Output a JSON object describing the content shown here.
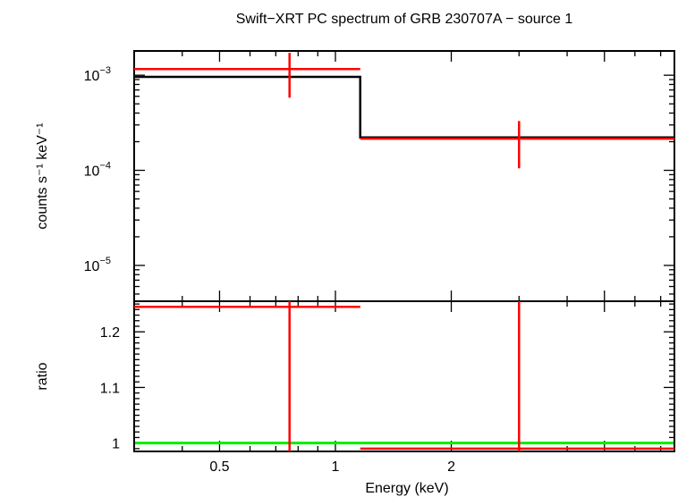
{
  "title": "Swift−XRT PC spectrum of GRB 230707A − source 1",
  "colors": {
    "data": "#ff0000",
    "model": "#000000",
    "unity": "#00ee00",
    "axes": "#000000"
  },
  "chart_data": [
    {
      "type": "scatter",
      "panel": "spectrum",
      "ylabel": "counts s⁻¹ keV⁻¹",
      "x_scale": "log",
      "y_scale": "log",
      "xlim": [
        0.3,
        7.6
      ],
      "ylim": [
        4.2e-06,
        0.0018
      ],
      "y_tick_labels": [
        {
          "value": 0.001,
          "base": "10",
          "exp": "−3"
        },
        {
          "value": 0.0001,
          "base": "10",
          "exp": "−4"
        },
        {
          "value": 1e-05,
          "base": "10",
          "exp": "−5"
        }
      ],
      "series": [
        {
          "kind": "data",
          "color": "#ff0000",
          "points": [
            {
              "x": 0.76,
              "x_low": 0.3,
              "x_high": 1.16,
              "y": 0.00116,
              "y_low": 0.00058,
              "y_high": 0.00172
            },
            {
              "x": 3.0,
              "x_low": 1.16,
              "x_high": 7.6,
              "y": 0.000215,
              "y_low": 0.000105,
              "y_high": 0.00033
            }
          ]
        },
        {
          "kind": "model",
          "color": "#000000",
          "steps": [
            {
              "x_low": 0.3,
              "x_high": 1.16,
              "y": 0.00096
            },
            {
              "x_low": 1.16,
              "x_high": 7.6,
              "y": 0.000222
            }
          ]
        }
      ]
    },
    {
      "type": "scatter",
      "panel": "ratio",
      "ylabel": "ratio",
      "xlabel": "Energy (keV)",
      "x_scale": "log",
      "y_scale": "linear",
      "xlim": [
        0.3,
        7.6
      ],
      "ylim": [
        0.985,
        1.255
      ],
      "x_tick_labels": [
        {
          "value": 0.5,
          "label": "0.5"
        },
        {
          "value": 1,
          "label": "1"
        },
        {
          "value": 2,
          "label": "2"
        }
      ],
      "y_tick_labels": [
        {
          "value": 1.0,
          "label": "1"
        },
        {
          "value": 1.1,
          "label": "1.1"
        },
        {
          "value": 1.2,
          "label": "1.2"
        }
      ],
      "reference_line": {
        "y": 1.0,
        "color": "#00ee00"
      },
      "series": [
        {
          "kind": "data",
          "color": "#ff0000",
          "points": [
            {
              "x": 0.76,
              "x_low": 0.3,
              "x_high": 1.16,
              "y": 1.245,
              "y_low": 0.985,
              "y_high": 1.255
            },
            {
              "x": 3.0,
              "x_low": 1.16,
              "x_high": 7.6,
              "y": 0.99,
              "y_low": 0.985,
              "y_high": 1.255
            }
          ]
        }
      ]
    }
  ]
}
